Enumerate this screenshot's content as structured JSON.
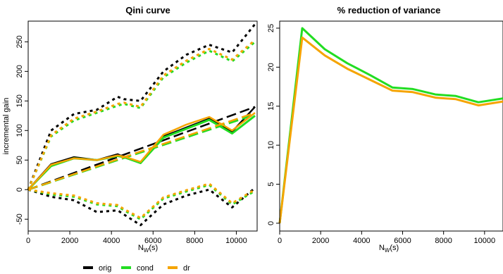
{
  "colors": {
    "orig": "#000000",
    "cond": "#22dd22",
    "dr": "#f5a400"
  },
  "legend": {
    "placement": "bottom",
    "items": [
      {
        "key": "orig",
        "label": "orig"
      },
      {
        "key": "cond",
        "label": "cond"
      },
      {
        "key": "dr",
        "label": "dr"
      }
    ]
  },
  "chart_data": [
    {
      "type": "line",
      "title": "Qini curve",
      "xlabel_main": "N",
      "xlabel_sub": "W",
      "xlabel_tail": "(s)",
      "ylabel": "incremental gain",
      "xlim": [
        0,
        11000
      ],
      "ylim": [
        -70,
        285
      ],
      "xticks": [
        0,
        2000,
        4000,
        6000,
        8000,
        10000
      ],
      "yticks": [
        -50,
        0,
        50,
        100,
        150,
        200,
        250
      ],
      "grid": false,
      "series": [
        {
          "name": "orig",
          "color_key": "orig",
          "style": "solid",
          "width": 2.5,
          "x": [
            0,
            1100,
            2200,
            3300,
            4300,
            4600,
            5400,
            6500,
            7600,
            8700,
            9800,
            10900
          ],
          "y": [
            0,
            43,
            55,
            50,
            60,
            55,
            45,
            90,
            105,
            120,
            98,
            140
          ]
        },
        {
          "name": "orig",
          "color_key": "orig",
          "style": "dotted",
          "width": 3,
          "x": [
            0,
            1100,
            2200,
            3300,
            4300,
            4600,
            5400,
            6500,
            7600,
            8700,
            9800,
            10900
          ],
          "y": [
            0,
            100,
            128,
            135,
            157,
            153,
            150,
            200,
            228,
            245,
            232,
            280
          ]
        },
        {
          "name": "orig",
          "color_key": "orig",
          "style": "dotted",
          "width": 3,
          "x": [
            0,
            1100,
            2200,
            3300,
            4300,
            4600,
            5400,
            6500,
            7600,
            8700,
            9800,
            10900
          ],
          "y": [
            0,
            -12,
            -18,
            -38,
            -35,
            -42,
            -60,
            -25,
            -10,
            0,
            -30,
            3
          ]
        },
        {
          "name": "orig",
          "color_key": "orig",
          "style": "dashed",
          "width": 2.5,
          "x": [
            0,
            10900
          ],
          "y": [
            0,
            140
          ]
        },
        {
          "name": "cond",
          "color_key": "cond",
          "style": "solid",
          "width": 3,
          "x": [
            0,
            1100,
            2200,
            3300,
            4300,
            4600,
            5400,
            6500,
            7600,
            8700,
            9800,
            10900
          ],
          "y": [
            0,
            40,
            53,
            50,
            57,
            55,
            45,
            88,
            103,
            118,
            95,
            125
          ]
        },
        {
          "name": "cond",
          "color_key": "cond",
          "style": "dotted",
          "width": 3,
          "x": [
            0,
            1100,
            2200,
            3300,
            4300,
            4600,
            5400,
            6500,
            7600,
            8700,
            9800,
            10900
          ],
          "y": [
            0,
            90,
            117,
            130,
            142,
            145,
            138,
            190,
            215,
            235,
            217,
            250
          ]
        },
        {
          "name": "cond",
          "color_key": "cond",
          "style": "dotted",
          "width": 3,
          "x": [
            0,
            1100,
            2200,
            3300,
            4300,
            4600,
            5400,
            6500,
            7600,
            8700,
            9800,
            10900
          ],
          "y": [
            0,
            -8,
            -12,
            -25,
            -28,
            -35,
            -50,
            -15,
            -3,
            8,
            -25,
            -2
          ]
        },
        {
          "name": "cond",
          "color_key": "cond",
          "style": "dashed",
          "width": 3,
          "x": [
            0,
            10900
          ],
          "y": [
            0,
            127
          ]
        },
        {
          "name": "dr",
          "color_key": "dr",
          "style": "solid",
          "width": 2.5,
          "x": [
            0,
            1100,
            2200,
            3300,
            4300,
            4600,
            5400,
            6500,
            7600,
            8700,
            9800,
            10900
          ],
          "y": [
            0,
            42,
            53,
            50,
            58,
            56,
            47,
            93,
            110,
            123,
            100,
            130
          ]
        },
        {
          "name": "dr",
          "color_key": "dr",
          "style": "dotted",
          "width": 3,
          "x": [
            0,
            1100,
            2200,
            3300,
            4300,
            4600,
            5400,
            6500,
            7600,
            8700,
            9800,
            10900
          ],
          "y": [
            0,
            92,
            120,
            132,
            145,
            147,
            140,
            193,
            218,
            238,
            220,
            253
          ]
        },
        {
          "name": "dr",
          "color_key": "dr",
          "style": "dotted",
          "width": 3,
          "x": [
            0,
            1100,
            2200,
            3300,
            4300,
            4600,
            5400,
            6500,
            7600,
            8700,
            9800,
            10900
          ],
          "y": [
            0,
            -6,
            -10,
            -23,
            -26,
            -33,
            -48,
            -13,
            -1,
            10,
            -23,
            0
          ]
        },
        {
          "name": "dr",
          "color_key": "dr",
          "style": "dashed",
          "width": 2.5,
          "x": [
            0,
            10900
          ],
          "y": [
            0,
            130
          ]
        }
      ]
    },
    {
      "type": "line",
      "title": "% reduction of variance",
      "xlabel_main": "N",
      "xlabel_sub": "W",
      "xlabel_tail": "(s)",
      "ylabel": "",
      "xlim": [
        0,
        10900
      ],
      "ylim": [
        -1,
        25.9
      ],
      "xticks": [
        0,
        2000,
        4000,
        6000,
        8000,
        10000
      ],
      "yticks": [
        0,
        5,
        10,
        15,
        20,
        25
      ],
      "grid": false,
      "series": [
        {
          "name": "cond",
          "color_key": "cond",
          "style": "solid",
          "width": 3,
          "x": [
            0,
            1100,
            2200,
            3300,
            4400,
            5500,
            6500,
            7600,
            8600,
            9700,
            10900
          ],
          "y": [
            0,
            25.0,
            22.3,
            20.5,
            19.0,
            17.4,
            17.2,
            16.5,
            16.3,
            15.5,
            16.0
          ]
        },
        {
          "name": "dr",
          "color_key": "dr",
          "style": "solid",
          "width": 3,
          "x": [
            0,
            1100,
            2200,
            3300,
            4400,
            5500,
            6500,
            7600,
            8600,
            9700,
            10900
          ],
          "y": [
            0,
            23.8,
            21.5,
            19.8,
            18.4,
            17.0,
            16.8,
            16.1,
            15.9,
            15.1,
            15.6
          ]
        }
      ]
    }
  ]
}
